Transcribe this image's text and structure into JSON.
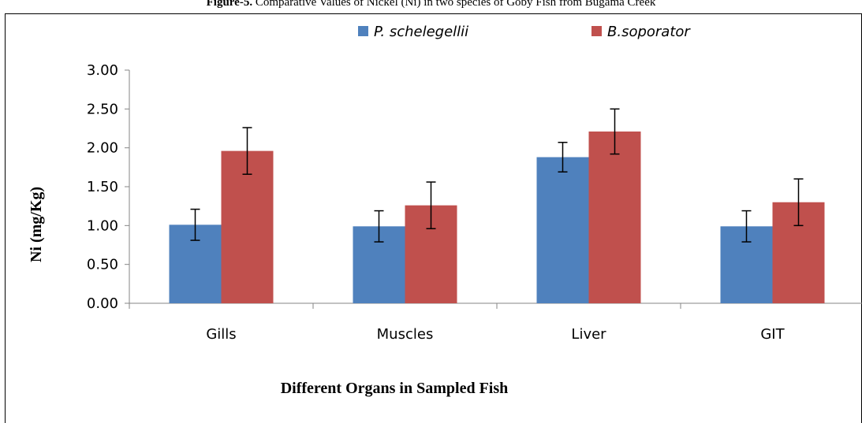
{
  "caption": {
    "label": "Figure-5.",
    "text": "Comparative Values of Nickel (Ni) in two species of Goby Fish from Bugama Creek"
  },
  "chart_data": {
    "type": "bar",
    "title": "",
    "xlabel": "Different Organs in Sampled Fish",
    "ylabel": "Ni  (mg/Kg)",
    "ylim": [
      0,
      3
    ],
    "yticks": [
      "0.00",
      "0.50",
      "1.00",
      "1.50",
      "2.00",
      "2.50",
      "3.00"
    ],
    "grid": false,
    "legend_position": "top",
    "categories": [
      "Gills",
      "Muscles",
      "Liver",
      "GIT"
    ],
    "series": [
      {
        "name": "P. schelegellii",
        "color": "#4F81BD",
        "values": [
          1.01,
          0.99,
          1.88,
          0.99
        ],
        "error": [
          0.2,
          0.2,
          0.19,
          0.2
        ]
      },
      {
        "name": "B.soporator",
        "color": "#C0504D",
        "values": [
          1.96,
          1.26,
          2.21,
          1.3
        ],
        "error": [
          0.3,
          0.3,
          0.29,
          0.3
        ]
      }
    ]
  }
}
